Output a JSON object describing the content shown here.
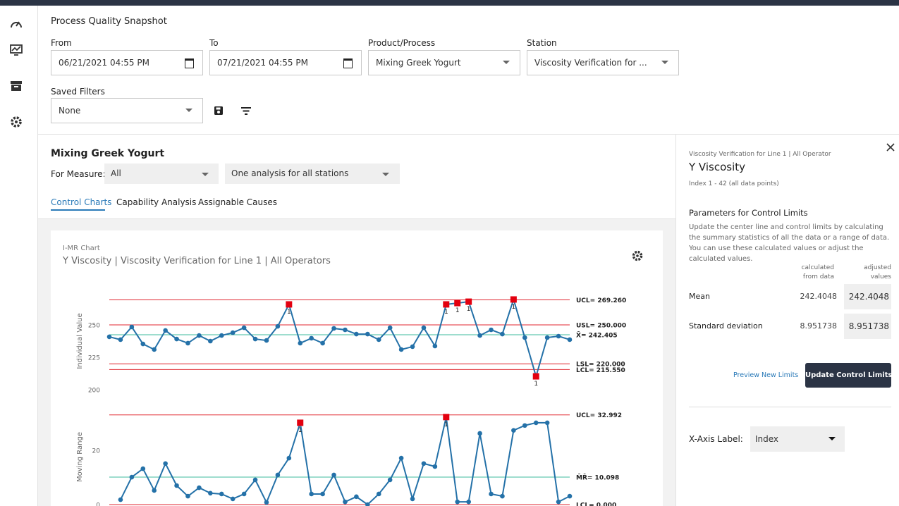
{
  "header": {
    "title": "Process Quality Snapshot"
  },
  "filters": {
    "from": {
      "label": "From",
      "value": "06/21/2021 04:55 PM"
    },
    "to": {
      "label": "To",
      "value": "07/21/2021 04:55 PM"
    },
    "product": {
      "label": "Product/Process",
      "value": "Mixing Greek Yogurt"
    },
    "station": {
      "label": "Station",
      "value": "Viscosity Verification for ..."
    },
    "saved": {
      "label": "Saved Filters",
      "value": "None"
    }
  },
  "main": {
    "title": "Mixing Greek Yogurt",
    "measure_label": "For Measure:",
    "measure": "All",
    "analysis": "One analysis for all stations",
    "tabs": [
      "Control Charts",
      "Capability Analysis",
      "Assignable Causes"
    ],
    "card": {
      "kicker": "I-MR Chart",
      "title": "Y Viscosity | Viscosity Verification for Line 1 | All Operators"
    }
  },
  "chart_data": [
    {
      "type": "line",
      "y_label": "Individual Value",
      "color": "#2471a8",
      "violation_color": "#e3000f",
      "x": [
        1,
        2,
        3,
        4,
        5,
        6,
        7,
        8,
        9,
        10,
        11,
        12,
        13,
        14,
        15,
        16,
        17,
        18,
        19,
        20,
        21,
        22,
        23,
        24,
        25,
        26,
        27,
        28,
        29,
        30,
        31,
        32,
        33,
        34,
        35,
        36,
        37,
        38,
        39,
        40,
        41,
        42
      ],
      "xlim": [
        1,
        42
      ],
      "values": [
        240.8,
        238.6,
        248.4,
        235.3,
        231,
        245.7,
        239.1,
        235.9,
        241.8,
        237.5,
        241.8,
        244,
        247.8,
        239.1,
        238,
        248.9,
        265.8,
        235.9,
        239.7,
        235.9,
        247.3,
        246.2,
        242.9,
        242.9,
        238.6,
        247.8,
        231,
        233.2,
        247.8,
        233.7,
        265.8,
        266.8,
        267.9,
        241.8,
        246.2,
        242.9,
        269.6,
        240.2,
        210.3,
        240.2,
        241.3,
        238.6
      ],
      "violations": [
        {
          "index": 16,
          "label": "1"
        },
        {
          "index": 30,
          "label": "1"
        },
        {
          "index": 31,
          "label": "1"
        },
        {
          "index": 32,
          "label": "1"
        },
        {
          "index": 36,
          "label": "1"
        },
        {
          "index": 38,
          "label": "1"
        }
      ],
      "ylim": [
        200,
        275
      ],
      "yticks": [
        200,
        225,
        250
      ],
      "limits": [
        {
          "label": "UCL= 269.260",
          "value": 269.26,
          "color": "#e0262f"
        },
        {
          "label": "USL= 250.000",
          "value": 250,
          "color": "#e0262f"
        },
        {
          "label": "X̄= 242.405",
          "value": 242.405,
          "color": "#3dbb9c"
        },
        {
          "label": "LSL= 220.000",
          "value": 220,
          "color": "#e0262f"
        },
        {
          "label": "LCL= 215.550",
          "value": 215.55,
          "color": "#e0262f"
        }
      ]
    },
    {
      "type": "line",
      "y_label": "Moving Range",
      "color": "#2471a8",
      "violation_color": "#e3000f",
      "x": [
        1,
        2,
        3,
        4,
        5,
        6,
        7,
        8,
        9,
        10,
        11,
        12,
        13,
        14,
        15,
        16,
        17,
        18,
        19,
        20,
        21,
        22,
        23,
        24,
        25,
        26,
        27,
        28,
        29,
        30,
        31,
        32,
        33,
        34,
        35,
        36,
        37,
        38,
        39,
        40,
        41,
        42
      ],
      "xlim": [
        1,
        42
      ],
      "values": [
        null,
        1.8,
        10.1,
        13.2,
        5.2,
        15.1,
        7.0,
        3.1,
        6.2,
        4.2,
        3.9,
        2.1,
        3.9,
        9.1,
        0.8,
        10.9,
        17.1,
        30.1,
        3.9,
        3.9,
        10.9,
        1.0,
        2.9,
        0,
        3.9,
        9.1,
        17.1,
        2.1,
        15.1,
        14.0,
        32.2,
        1.0,
        1.0,
        26.2,
        3.9,
        3.1,
        27.3,
        29.1,
        30.1,
        30.1,
        1.0,
        3.1
      ],
      "violations": [
        {
          "index": 17,
          "label": "1"
        },
        {
          "index": 30,
          "label": "1"
        }
      ],
      "ylim": [
        0,
        35
      ],
      "yticks": [
        0,
        20
      ],
      "limits": [
        {
          "label": "UCL= 32.992",
          "value": 32.992,
          "color": "#e0262f"
        },
        {
          "label": "M̄R̄= 10.098",
          "value": 10.098,
          "color": "#3dbb9c"
        },
        {
          "label": "LCL= 0.000",
          "value": 0,
          "color": "#e0262f"
        }
      ]
    }
  ],
  "panel": {
    "context": "Viscosity Verification for Line 1 | All Operator",
    "title": "Y Viscosity",
    "range": "Index 1 - 42 (all data points)",
    "section": "Parameters for Control Limits",
    "description": "Update the center line and control limits by calculating the summary statistics of all the data or a range of data. You can use these calculated values or adjust the calculated values.",
    "col_calculated": [
      "calculated",
      "from data"
    ],
    "col_adjusted": [
      "adjusted",
      "values"
    ],
    "rows": [
      {
        "name": "Mean",
        "calculated": "242.4048",
        "adjusted": "242.4048"
      },
      {
        "name": "Standard deviation",
        "calculated": "8.951738",
        "adjusted": "8.951738"
      }
    ],
    "preview": "Preview New Limits",
    "update": "Update Control Limits",
    "xaxis_label": "X-Axis Label:",
    "xaxis_value": "Index"
  }
}
